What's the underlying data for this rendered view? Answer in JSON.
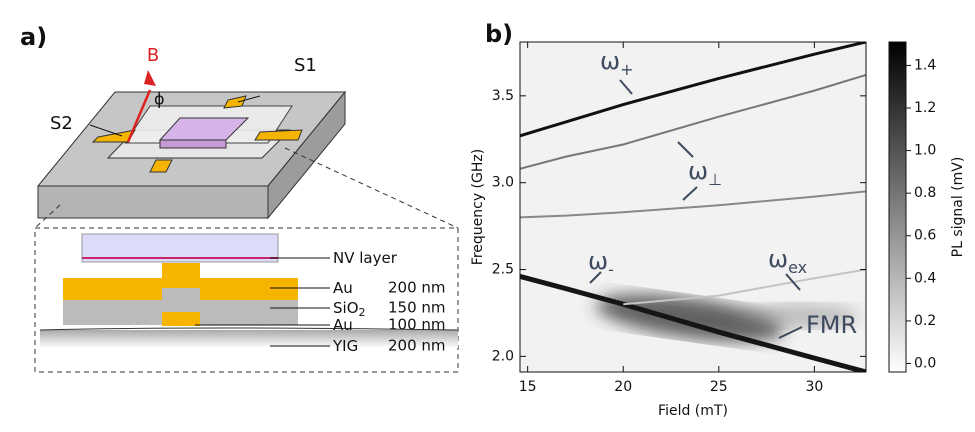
{
  "diagram": {
    "panel": "a)",
    "field": "B",
    "angle": "ϕ",
    "s1": "S1",
    "s2": "S2",
    "layers": [
      {
        "name": "NV layer"
      },
      {
        "name": "Au",
        "thickness": "200 nm"
      },
      {
        "name": "SiO",
        "sub": "2",
        "thickness": "150 nm"
      },
      {
        "name": "Au",
        "thickness": "100 nm"
      },
      {
        "name": "YIG",
        "thickness": "200 nm"
      }
    ]
  },
  "chart_data": {
    "type": "line",
    "panel": "b)",
    "x_label": "Field (mT)",
    "y_label": "Frequency (GHz)",
    "colorbar_label": "PL signal (mV)",
    "xlim": [
      14.6,
      32.7
    ],
    "xticks": [
      15,
      20,
      25,
      30
    ],
    "ylim": [
      1.91,
      3.81
    ],
    "yticks": [
      {
        "value": 2,
        "label": "2.0"
      },
      2.5,
      {
        "value": 3,
        "label": "3.0"
      },
      3.5
    ],
    "clim": [
      -0.04,
      1.51
    ],
    "cticks": [
      {
        "value": 0,
        "label": "0.0"
      },
      0.2,
      0.4,
      0.6,
      0.8,
      {
        "value": 1,
        "label": "1.0"
      },
      1.2,
      1.4
    ],
    "x": [
      14.6,
      17,
      20,
      25,
      30,
      32.7
    ],
    "series": [
      {
        "name": "ω+",
        "color": "#111111",
        "values": [
          3.27,
          3.35,
          3.45,
          3.6,
          3.74,
          3.81
        ]
      },
      {
        "name": "ω⊥",
        "color": "#777777",
        "values": [
          3.08,
          3.15,
          3.22,
          3.38,
          3.53,
          3.62
        ]
      },
      {
        "name": "ω⊥ 2",
        "color": "#888888",
        "values": [
          2.8,
          2.81,
          2.83,
          2.87,
          2.92,
          2.95
        ]
      },
      {
        "name": "ω-",
        "color": "#151515",
        "values": [
          2.46,
          2.39,
          2.3,
          2.14,
          1.99,
          1.91
        ]
      },
      {
        "name": "ωex",
        "color": "#c4c4c4",
        "values": [
          null,
          null,
          2.3,
          2.35,
          2.45,
          2.5
        ]
      }
    ],
    "annotations": [
      {
        "text": "ω",
        "sub": "+"
      },
      {
        "text": "ω",
        "sub": "⊥"
      },
      {
        "text": "ω",
        "sub": "-"
      },
      {
        "text": "ω",
        "sub": "ex"
      },
      {
        "text": "FMR"
      }
    ]
  }
}
